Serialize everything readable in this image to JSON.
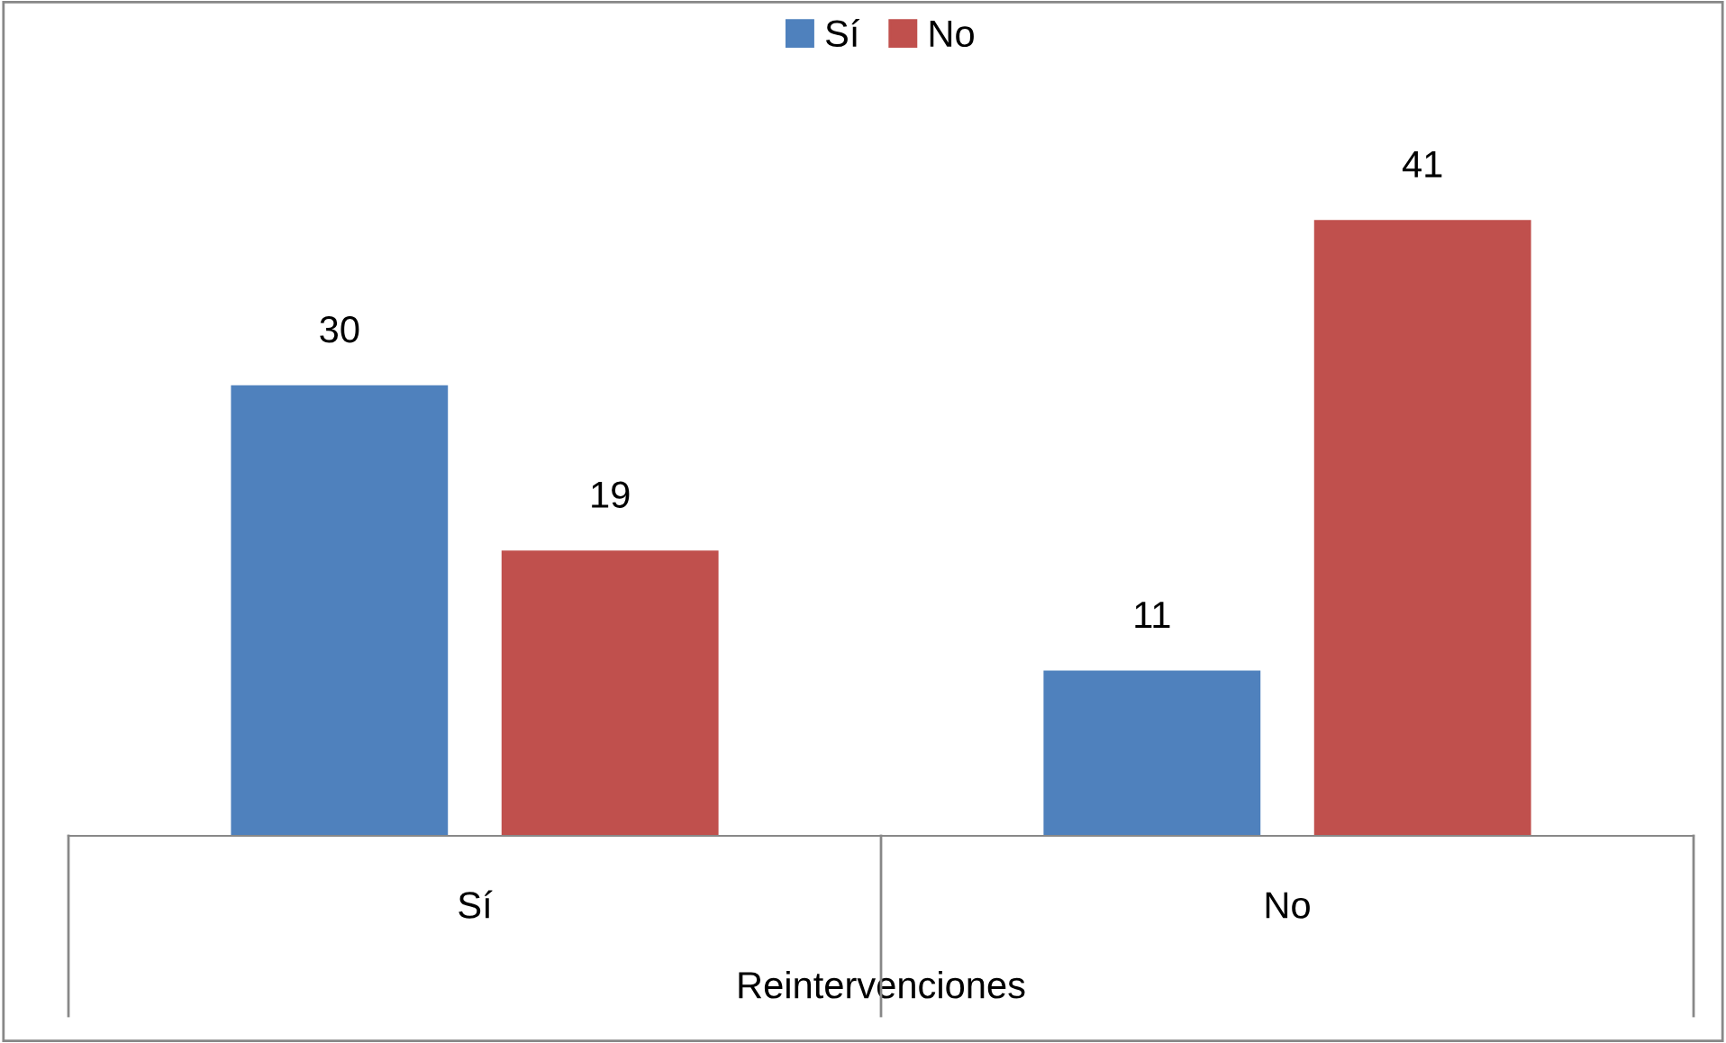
{
  "chart_data": {
    "type": "bar",
    "xlabel": "Reintervenciones",
    "categories": [
      "Sí",
      "No"
    ],
    "series": [
      {
        "name": "Sí",
        "color": "#4f81bd",
        "values": [
          30,
          11
        ]
      },
      {
        "name": "No",
        "color": "#c0504d",
        "values": [
          19,
          41
        ]
      }
    ],
    "data_labels": true,
    "legend": "top",
    "grid": false
  }
}
